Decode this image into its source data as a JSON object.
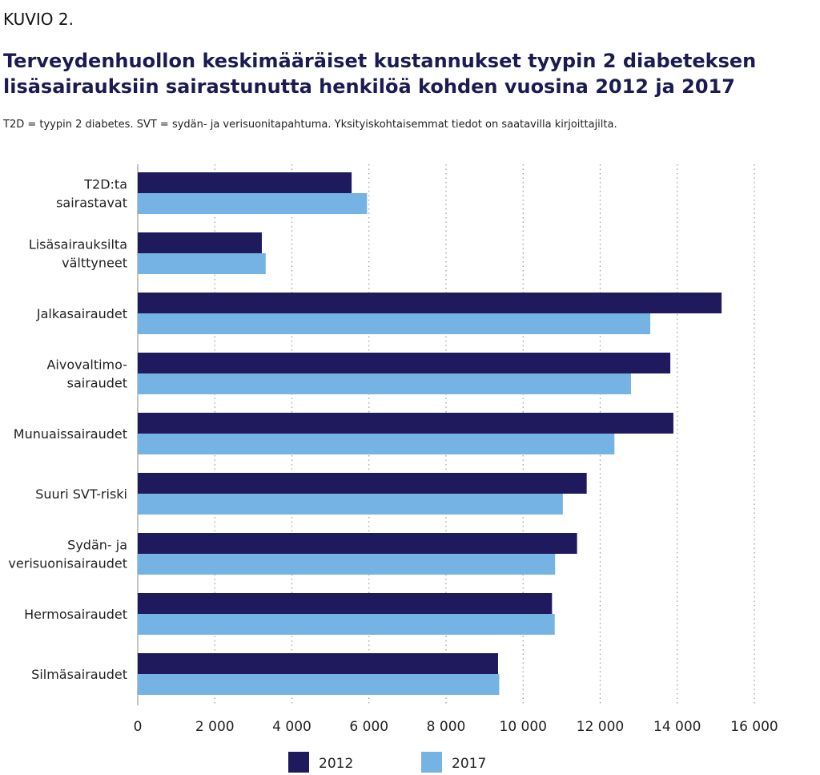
{
  "figure_label": "KUVIO 2.",
  "title_line1": "Terveydenhuollon keskimääräiset kustannukset tyypin 2 diabeteksen",
  "title_line2": "lisäsairauksiin sairastunutta henkilöä kohden vuosina 2012 ja 2017",
  "subtitle": "T2D = tyypin 2 diabetes. SVT = sydän- ja verisuonitapahtuma. Yksityiskohtaisemmat tiedot on saatavilla kirjoittajilta.",
  "chart_data": {
    "type": "bar",
    "orientation": "horizontal",
    "categories": [
      [
        "T2D:ta",
        "sairastavat"
      ],
      [
        "Lisäsairauksilta",
        "välttyneet"
      ],
      [
        "Jalkasairaudet"
      ],
      [
        "Aivovaltimo-",
        "sairaudet"
      ],
      [
        "Munuaissairaudet"
      ],
      [
        "Suuri SVT-riski"
      ],
      [
        "Sydän- ja",
        "verisuonisairaudet"
      ],
      [
        "Hermosairaudet"
      ],
      [
        "Silmäsairaudet"
      ]
    ],
    "series": [
      {
        "name": "2012",
        "color": "#1f1a5e",
        "values": [
          5550,
          3220,
          15150,
          13820,
          13900,
          11650,
          11400,
          10750,
          9350
        ]
      },
      {
        "name": "2017",
        "color": "#74b3e3",
        "values": [
          5950,
          3320,
          13300,
          12800,
          12370,
          11030,
          10830,
          10820,
          9380
        ]
      }
    ],
    "xlim": [
      0,
      16000
    ],
    "xticks": [
      0,
      2000,
      4000,
      6000,
      8000,
      10000,
      12000,
      14000,
      16000
    ],
    "xtick_labels": [
      "0",
      "2 000",
      "4 000",
      "6 000",
      "8 000",
      "10 000",
      "12 000",
      "14 000",
      "16 000"
    ],
    "grid": "vertical dotted",
    "legend_position": "bottom"
  }
}
